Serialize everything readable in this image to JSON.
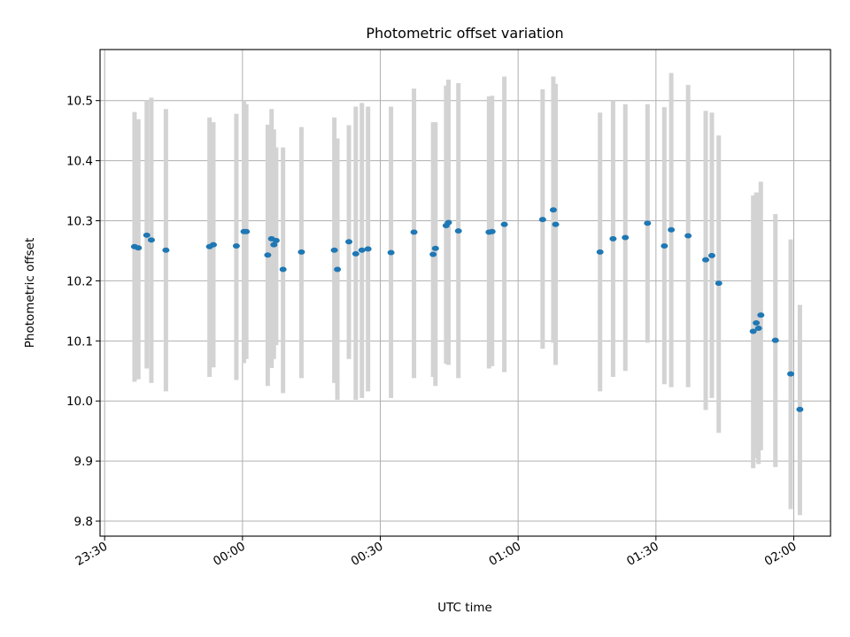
{
  "chart_data": {
    "type": "scatter",
    "title": "Photometric offset variation",
    "xlabel": "UTC time",
    "ylabel": "Photometric offset",
    "x_ticks": [
      "23:30",
      "00:00",
      "00:30",
      "01:00",
      "01:30",
      "02:00"
    ],
    "y_ticks": [
      "9.8",
      "9.9",
      "10.0",
      "10.1",
      "10.2",
      "10.3",
      "10.4",
      "10.5"
    ],
    "xlim": [
      "23:29",
      "02:08"
    ],
    "ylim": [
      9.775,
      10.585
    ],
    "grid": true,
    "colors": {
      "points": "#1f77b4",
      "errorbars": "#d3d3d3",
      "grid": "#b0b0b0"
    },
    "series": [
      {
        "x": [
          "23:36:30",
          "23:37:20",
          "23:39:10",
          "23:40:10",
          "23:43:20",
          "23:52:50",
          "23:53:40",
          "23:58:40",
          "00:00:20",
          "00:00:50",
          "00:05:30",
          "00:06:20",
          "00:06:50",
          "00:07:20",
          "00:08:50",
          "00:12:50",
          "00:20:00",
          "00:20:40",
          "00:23:10",
          "00:24:40",
          "00:26:00",
          "00:27:20",
          "00:32:20",
          "00:37:20",
          "00:41:30",
          "00:42:00",
          "00:44:20",
          "00:44:50",
          "00:47:00",
          "00:53:40",
          "00:54:20",
          "00:57:00",
          "01:05:20",
          "01:07:40",
          "01:08:10",
          "01:17:50",
          "01:20:40",
          "01:23:20",
          "01:28:10",
          "01:31:50",
          "01:33:20",
          "01:37:00",
          "01:40:50",
          "01:42:10",
          "01:43:40",
          "01:51:10",
          "01:51:50",
          "01:52:20",
          "01:52:50",
          "01:56:00",
          "01:59:20",
          "02:01:20"
        ],
        "y": [
          10.257,
          10.255,
          10.276,
          10.268,
          10.251,
          10.257,
          10.26,
          10.258,
          10.282,
          10.282,
          10.243,
          10.27,
          10.26,
          10.267,
          10.219,
          10.248,
          10.251,
          10.219,
          10.265,
          10.245,
          10.251,
          10.253,
          10.247,
          10.281,
          10.244,
          10.254,
          10.292,
          10.297,
          10.283,
          10.281,
          10.282,
          10.294,
          10.302,
          10.318,
          10.294,
          10.248,
          10.27,
          10.272,
          10.296,
          10.258,
          10.285,
          10.275,
          10.235,
          10.242,
          10.196,
          10.116,
          10.13,
          10.121,
          10.143,
          10.101,
          10.045,
          9.986
        ],
        "y_low": [
          10.032,
          10.036,
          10.054,
          10.03,
          10.016,
          10.04,
          10.056,
          10.035,
          10.063,
          10.07,
          10.025,
          10.055,
          10.07,
          10.093,
          10.013,
          10.038,
          10.03,
          10.002,
          10.07,
          10.002,
          10.005,
          10.016,
          10.005,
          10.038,
          10.04,
          10.025,
          10.062,
          10.06,
          10.038,
          10.054,
          10.058,
          10.048,
          10.087,
          10.097,
          10.06,
          10.016,
          10.04,
          10.05,
          10.097,
          10.028,
          10.023,
          10.023,
          9.985,
          10.005,
          9.947,
          9.888,
          9.905,
          9.895,
          9.918,
          9.89,
          9.82,
          9.81
        ],
        "y_high": [
          10.481,
          10.469,
          10.5,
          10.505,
          10.486,
          10.472,
          10.464,
          10.478,
          10.5,
          10.494,
          10.46,
          10.486,
          10.452,
          10.422,
          10.422,
          10.456,
          10.472,
          10.437,
          10.459,
          10.49,
          10.496,
          10.49,
          10.49,
          10.52,
          10.464,
          10.464,
          10.525,
          10.535,
          10.529,
          10.507,
          10.508,
          10.54,
          10.519,
          10.54,
          10.528,
          10.48,
          10.5,
          10.494,
          10.494,
          10.489,
          10.546,
          10.526,
          10.483,
          10.48,
          10.442,
          10.342,
          10.347,
          10.347,
          10.365,
          10.311,
          10.269,
          10.16
        ]
      }
    ]
  }
}
